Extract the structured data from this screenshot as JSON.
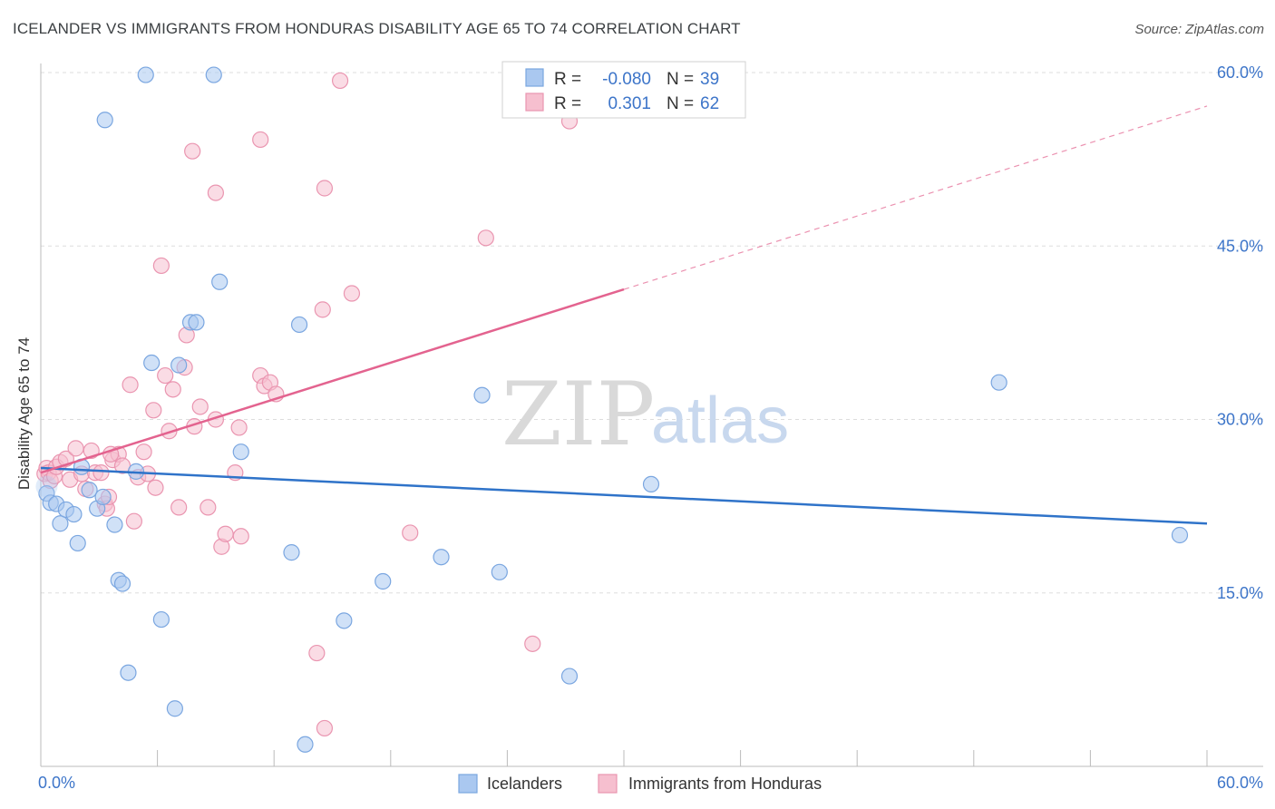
{
  "title": "ICELANDER VS IMMIGRANTS FROM HONDURAS DISABILITY AGE 65 TO 74 CORRELATION CHART",
  "source": "Source: ZipAtlas.com",
  "watermark": {
    "zip": "ZIP",
    "atlas": "atlas"
  },
  "colors": {
    "blue_fill": "#aac8f0",
    "blue_stroke": "#7aa6e0",
    "blue_line": "#2f73c9",
    "pink_fill": "#f6bfcf",
    "pink_stroke": "#ea95b0",
    "pink_line": "#e3638f",
    "axis_label": "#3d75c9",
    "grid": "#dddddd"
  },
  "legend": {
    "rows": [
      {
        "r_label": "R =",
        "r_value": "-0.080",
        "n_label": "N =",
        "n_value": "39"
      },
      {
        "r_label": "R =",
        "r_value": "0.301",
        "n_label": "N =",
        "n_value": "62"
      }
    ]
  },
  "bottom_legend": [
    "Icelanders",
    "Immigrants from Honduras"
  ],
  "chart_data": {
    "type": "scatter",
    "title": "ICELANDER VS IMMIGRANTS FROM HONDURAS DISABILITY AGE 65 TO 74 CORRELATION CHART",
    "xlabel": "",
    "ylabel": "Disability Age 65 to 74",
    "xlim": [
      0,
      60
    ],
    "ylim": [
      0,
      60
    ],
    "x_tick_labels": [
      "0.0%",
      "60.0%"
    ],
    "y_ticks": [
      15,
      30,
      45,
      60
    ],
    "y_tick_labels": [
      "15.0%",
      "30.0%",
      "45.0%",
      "60.0%"
    ],
    "grid": true,
    "series": [
      {
        "name": "Icelanders",
        "r": -0.08,
        "n": 39,
        "trend": {
          "x": [
            0,
            60
          ],
          "y": [
            25.8,
            21.0
          ],
          "dashed_from": null
        },
        "points": [
          [
            0.3,
            23.6
          ],
          [
            0.5,
            22.8
          ],
          [
            0.8,
            22.7
          ],
          [
            1.0,
            21.0
          ],
          [
            1.3,
            22.2
          ],
          [
            1.7,
            21.8
          ],
          [
            1.9,
            19.3
          ],
          [
            2.1,
            25.9
          ],
          [
            2.5,
            23.9
          ],
          [
            2.9,
            22.3
          ],
          [
            3.2,
            23.3
          ],
          [
            3.8,
            20.9
          ],
          [
            4.0,
            16.1
          ],
          [
            4.2,
            15.8
          ],
          [
            4.5,
            8.1
          ],
          [
            4.9,
            25.5
          ],
          [
            5.4,
            59.8
          ],
          [
            5.7,
            34.9
          ],
          [
            6.2,
            12.7
          ],
          [
            6.9,
            5.0
          ],
          [
            7.1,
            34.7
          ],
          [
            7.7,
            38.4
          ],
          [
            8.0,
            38.4
          ],
          [
            8.9,
            59.8
          ],
          [
            9.2,
            41.9
          ],
          [
            10.3,
            27.2
          ],
          [
            12.9,
            18.5
          ],
          [
            13.3,
            38.2
          ],
          [
            13.6,
            1.9
          ],
          [
            15.6,
            12.6
          ],
          [
            17.6,
            16.0
          ],
          [
            20.6,
            18.1
          ],
          [
            22.7,
            32.1
          ],
          [
            23.6,
            16.8
          ],
          [
            27.2,
            7.8
          ],
          [
            31.4,
            24.4
          ],
          [
            49.3,
            33.2
          ],
          [
            58.6,
            20.0
          ],
          [
            3.3,
            55.9
          ]
        ]
      },
      {
        "name": "Immigrants from Honduras",
        "r": 0.301,
        "n": 62,
        "trend": {
          "x": [
            0,
            60
          ],
          "y": [
            25.4,
            57.1
          ],
          "dashed_from": 30.0
        },
        "points": [
          [
            0.2,
            25.3
          ],
          [
            0.3,
            25.8
          ],
          [
            0.4,
            25.4
          ],
          [
            0.5,
            24.7
          ],
          [
            0.7,
            25.1
          ],
          [
            0.8,
            25.9
          ],
          [
            1.0,
            26.3
          ],
          [
            1.3,
            26.6
          ],
          [
            1.5,
            24.8
          ],
          [
            1.8,
            27.5
          ],
          [
            2.1,
            25.3
          ],
          [
            2.3,
            24.0
          ],
          [
            2.6,
            27.3
          ],
          [
            2.8,
            25.4
          ],
          [
            3.1,
            25.4
          ],
          [
            3.3,
            22.7
          ],
          [
            3.4,
            22.3
          ],
          [
            3.5,
            23.3
          ],
          [
            3.7,
            26.5
          ],
          [
            4.0,
            27.0
          ],
          [
            4.2,
            26.0
          ],
          [
            4.6,
            33.0
          ],
          [
            4.8,
            21.2
          ],
          [
            5.0,
            25.0
          ],
          [
            5.3,
            27.2
          ],
          [
            5.5,
            25.3
          ],
          [
            5.8,
            30.8
          ],
          [
            5.9,
            24.1
          ],
          [
            6.2,
            43.3
          ],
          [
            6.4,
            33.8
          ],
          [
            6.6,
            29.0
          ],
          [
            6.8,
            32.6
          ],
          [
            7.1,
            22.4
          ],
          [
            7.4,
            34.5
          ],
          [
            7.5,
            37.3
          ],
          [
            7.8,
            53.2
          ],
          [
            7.9,
            29.4
          ],
          [
            8.2,
            31.1
          ],
          [
            8.6,
            22.4
          ],
          [
            9.0,
            49.6
          ],
          [
            9.0,
            30.0
          ],
          [
            9.3,
            19.0
          ],
          [
            9.5,
            20.1
          ],
          [
            10.0,
            25.4
          ],
          [
            10.2,
            29.3
          ],
          [
            10.3,
            19.9
          ],
          [
            11.3,
            54.2
          ],
          [
            11.3,
            33.8
          ],
          [
            11.5,
            32.9
          ],
          [
            11.8,
            33.2
          ],
          [
            12.1,
            32.2
          ],
          [
            14.2,
            9.8
          ],
          [
            14.6,
            3.3
          ],
          [
            14.5,
            39.5
          ],
          [
            14.6,
            50.0
          ],
          [
            15.4,
            59.3
          ],
          [
            16.0,
            40.9
          ],
          [
            19.0,
            20.2
          ],
          [
            22.9,
            45.7
          ],
          [
            25.3,
            10.6
          ],
          [
            27.2,
            55.8
          ],
          [
            3.6,
            27.0
          ]
        ]
      }
    ]
  }
}
